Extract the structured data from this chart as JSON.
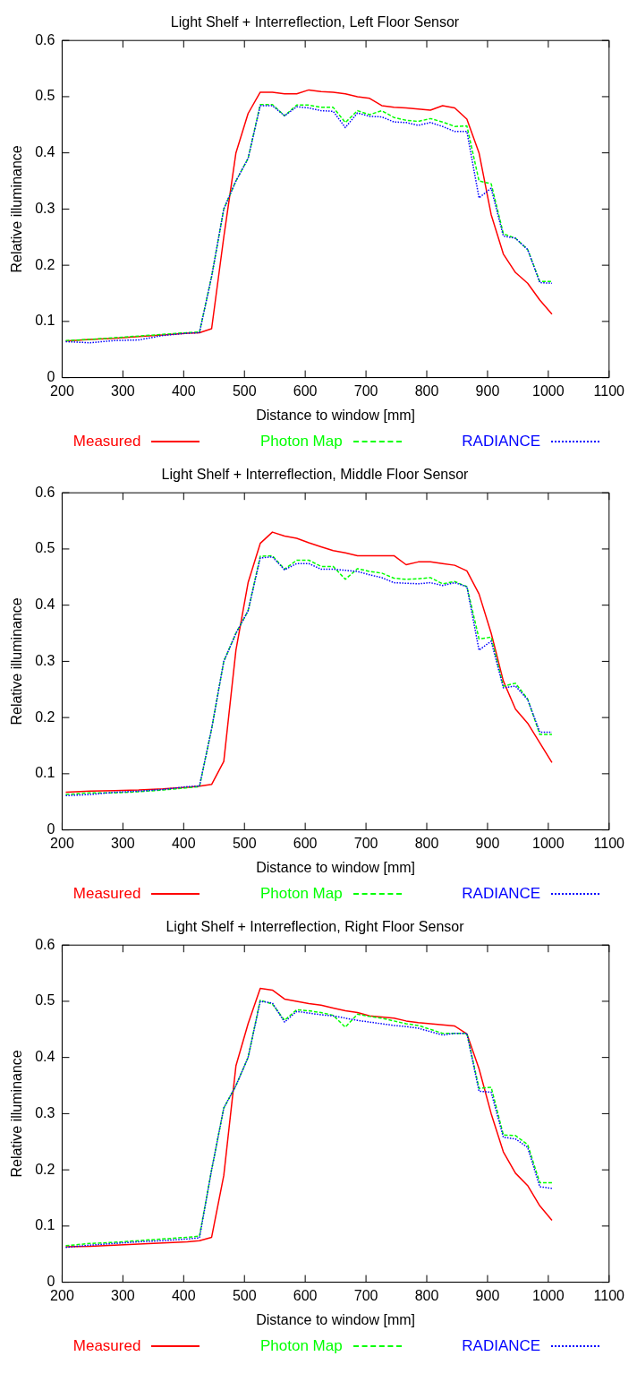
{
  "chart_data": [
    {
      "type": "line",
      "title": "Light Shelf + Interreflection, Left Floor Sensor",
      "xlabel": "Distance to window [mm]",
      "ylabel": "Relative illuminance",
      "x": [
        206,
        246,
        286,
        326,
        366,
        406,
        426,
        446,
        466,
        486,
        506,
        526,
        546,
        566,
        586,
        606,
        626,
        646,
        666,
        686,
        706,
        726,
        746,
        766,
        786,
        806,
        826,
        846,
        866,
        886,
        906,
        926,
        946,
        966,
        986,
        1006
      ],
      "xlim": [
        200,
        1100
      ],
      "xticks": [
        200,
        300,
        400,
        500,
        600,
        700,
        800,
        900,
        1000,
        1100
      ],
      "ylim": [
        0,
        0.6
      ],
      "yticks": [
        0,
        0.1,
        0.2,
        0.3,
        0.4,
        0.5,
        0.6
      ],
      "grid": false,
      "legend": "bottom",
      "marker": "none",
      "series": [
        {
          "name": "Measured",
          "color": "#ff0000",
          "line_style": "solid",
          "values": [
            0.065,
            0.068,
            0.07,
            0.073,
            0.076,
            0.079,
            0.08,
            0.087,
            0.25,
            0.4,
            0.47,
            0.508,
            0.508,
            0.505,
            0.505,
            0.512,
            0.509,
            0.508,
            0.505,
            0.5,
            0.497,
            0.484,
            0.481,
            0.48,
            0.478,
            0.476,
            0.484,
            0.48,
            0.46,
            0.4,
            0.29,
            0.22,
            0.187,
            0.168,
            0.138,
            0.113
          ]
        },
        {
          "name": "Photon Map",
          "color": "#00ff00",
          "line_style": "dashed",
          "values": [
            0.066,
            0.068,
            0.071,
            0.074,
            0.077,
            0.08,
            0.081,
            0.18,
            0.3,
            0.35,
            0.39,
            0.486,
            0.486,
            0.466,
            0.485,
            0.485,
            0.481,
            0.481,
            0.454,
            0.475,
            0.468,
            0.475,
            0.463,
            0.458,
            0.456,
            0.461,
            0.455,
            0.447,
            0.448,
            0.35,
            0.345,
            0.256,
            0.248,
            0.228,
            0.171,
            0.171
          ]
        },
        {
          "name": "RADIANCE",
          "color": "#0000ff",
          "line_style": "dotted",
          "values": [
            0.064,
            0.062,
            0.066,
            0.067,
            0.075,
            0.079,
            0.08,
            0.18,
            0.3,
            0.35,
            0.39,
            0.484,
            0.484,
            0.466,
            0.482,
            0.48,
            0.475,
            0.474,
            0.445,
            0.471,
            0.465,
            0.464,
            0.455,
            0.454,
            0.449,
            0.454,
            0.447,
            0.438,
            0.438,
            0.32,
            0.337,
            0.252,
            0.248,
            0.228,
            0.169,
            0.168
          ]
        }
      ]
    },
    {
      "type": "line",
      "title": "Light Shelf + Interreflection, Middle Floor Sensor",
      "xlabel": "Distance to window [mm]",
      "ylabel": "Relative illuminance",
      "x": [
        206,
        246,
        286,
        326,
        366,
        406,
        426,
        446,
        466,
        486,
        506,
        526,
        546,
        566,
        586,
        606,
        626,
        646,
        666,
        686,
        706,
        726,
        746,
        766,
        786,
        806,
        826,
        846,
        866,
        886,
        906,
        926,
        946,
        966,
        986,
        1006
      ],
      "xlim": [
        200,
        1100
      ],
      "xticks": [
        200,
        300,
        400,
        500,
        600,
        700,
        800,
        900,
        1000,
        1100
      ],
      "ylim": [
        0,
        0.6
      ],
      "yticks": [
        0,
        0.1,
        0.2,
        0.3,
        0.4,
        0.5,
        0.6
      ],
      "grid": false,
      "legend": "bottom",
      "marker": "none",
      "series": [
        {
          "name": "Measured",
          "color": "#ff0000",
          "line_style": "solid",
          "values": [
            0.067,
            0.069,
            0.07,
            0.071,
            0.073,
            0.076,
            0.078,
            0.081,
            0.122,
            0.32,
            0.44,
            0.51,
            0.53,
            0.523,
            0.519,
            0.511,
            0.504,
            0.497,
            0.493,
            0.488,
            0.488,
            0.488,
            0.488,
            0.472,
            0.477,
            0.477,
            0.474,
            0.471,
            0.461,
            0.42,
            0.35,
            0.265,
            0.215,
            0.19,
            0.155,
            0.12
          ]
        },
        {
          "name": "Photon Map",
          "color": "#00ff00",
          "line_style": "dashed",
          "values": [
            0.063,
            0.066,
            0.066,
            0.068,
            0.071,
            0.075,
            0.077,
            0.18,
            0.3,
            0.35,
            0.39,
            0.487,
            0.488,
            0.464,
            0.48,
            0.48,
            0.469,
            0.469,
            0.446,
            0.465,
            0.46,
            0.457,
            0.448,
            0.446,
            0.447,
            0.449,
            0.438,
            0.442,
            0.433,
            0.34,
            0.343,
            0.256,
            0.261,
            0.233,
            0.17,
            0.17
          ]
        },
        {
          "name": "RADIANCE",
          "color": "#0000ff",
          "line_style": "dotted",
          "values": [
            0.061,
            0.063,
            0.067,
            0.069,
            0.072,
            0.077,
            0.078,
            0.18,
            0.3,
            0.35,
            0.39,
            0.484,
            0.486,
            0.463,
            0.474,
            0.474,
            0.464,
            0.464,
            0.462,
            0.46,
            0.454,
            0.449,
            0.44,
            0.439,
            0.438,
            0.44,
            0.435,
            0.44,
            0.433,
            0.32,
            0.336,
            0.253,
            0.256,
            0.232,
            0.174,
            0.174
          ]
        }
      ]
    },
    {
      "type": "line",
      "title": "Light Shelf + Interreflection, Right Floor Sensor",
      "xlabel": "Distance to window [mm]",
      "ylabel": "Relative illuminance",
      "x": [
        206,
        246,
        286,
        326,
        366,
        406,
        426,
        446,
        466,
        486,
        506,
        526,
        546,
        566,
        586,
        606,
        626,
        646,
        666,
        686,
        706,
        726,
        746,
        766,
        786,
        806,
        826,
        846,
        866,
        886,
        906,
        926,
        946,
        966,
        986,
        1006
      ],
      "xlim": [
        200,
        1100
      ],
      "xticks": [
        200,
        300,
        400,
        500,
        600,
        700,
        800,
        900,
        1000,
        1100
      ],
      "ylim": [
        0,
        0.6
      ],
      "yticks": [
        0,
        0.1,
        0.2,
        0.3,
        0.4,
        0.5,
        0.6
      ],
      "grid": false,
      "legend": "bottom",
      "marker": "none",
      "series": [
        {
          "name": "Measured",
          "color": "#ff0000",
          "line_style": "solid",
          "values": [
            0.063,
            0.064,
            0.066,
            0.068,
            0.07,
            0.072,
            0.074,
            0.08,
            0.19,
            0.385,
            0.46,
            0.523,
            0.52,
            0.504,
            0.5,
            0.496,
            0.493,
            0.488,
            0.483,
            0.48,
            0.474,
            0.472,
            0.47,
            0.465,
            0.462,
            0.46,
            0.458,
            0.456,
            0.442,
            0.38,
            0.3,
            0.232,
            0.194,
            0.172,
            0.136,
            0.11
          ]
        },
        {
          "name": "Photon Map",
          "color": "#00ff00",
          "line_style": "dashed",
          "values": [
            0.065,
            0.069,
            0.071,
            0.074,
            0.077,
            0.08,
            0.082,
            0.2,
            0.31,
            0.35,
            0.4,
            0.502,
            0.495,
            0.466,
            0.485,
            0.483,
            0.48,
            0.475,
            0.454,
            0.477,
            0.473,
            0.47,
            0.465,
            0.46,
            0.457,
            0.45,
            0.443,
            0.443,
            0.443,
            0.345,
            0.347,
            0.262,
            0.261,
            0.245,
            0.177,
            0.177
          ]
        },
        {
          "name": "RADIANCE",
          "color": "#0000ff",
          "line_style": "dotted",
          "values": [
            0.062,
            0.066,
            0.069,
            0.072,
            0.074,
            0.077,
            0.079,
            0.2,
            0.31,
            0.35,
            0.4,
            0.5,
            0.497,
            0.463,
            0.482,
            0.479,
            0.476,
            0.474,
            0.47,
            0.466,
            0.463,
            0.46,
            0.457,
            0.455,
            0.452,
            0.446,
            0.44,
            0.443,
            0.443,
            0.34,
            0.338,
            0.258,
            0.255,
            0.24,
            0.17,
            0.167
          ]
        }
      ]
    }
  ]
}
